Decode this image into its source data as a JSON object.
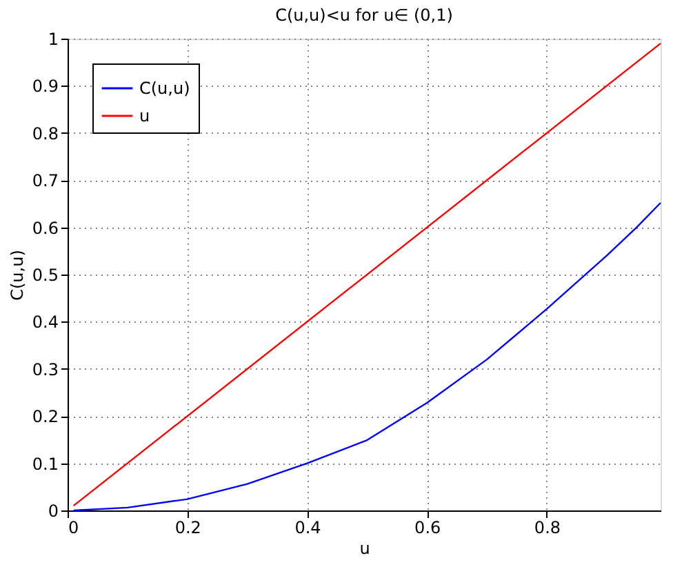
{
  "chart_data": {
    "type": "line",
    "title": "C(u,u)<u for u∈ (0,1)",
    "xlabel": "u",
    "ylabel": "C(u,u)",
    "series": [
      {
        "name": "C(u,u)",
        "color": "#0000ff",
        "x": [
          0.01,
          0.1,
          0.2,
          0.3,
          0.4,
          0.5,
          0.6,
          0.7,
          0.8,
          0.9,
          0.95,
          0.99
        ],
        "values": [
          0,
          0.006,
          0.024,
          0.056,
          0.1,
          0.149,
          0.228,
          0.32,
          0.427,
          0.54,
          0.6,
          0.652
        ]
      },
      {
        "name": "u",
        "color": "#ff0000",
        "x": [
          0.01,
          0.99
        ],
        "values": [
          0.01,
          0.99
        ]
      }
    ],
    "xlim": [
      0,
      0.99
    ],
    "xticks": [
      0,
      0.2,
      0.4,
      0.6,
      0.8
    ],
    "ylim": [
      0,
      1
    ],
    "yticks": [
      0,
      0.1,
      0.2,
      0.3,
      0.4,
      0.5,
      0.6,
      0.7,
      0.8,
      0.9,
      1
    ],
    "grid": true,
    "legend": "top left",
    "marker": "none",
    "line_style": "solid"
  }
}
